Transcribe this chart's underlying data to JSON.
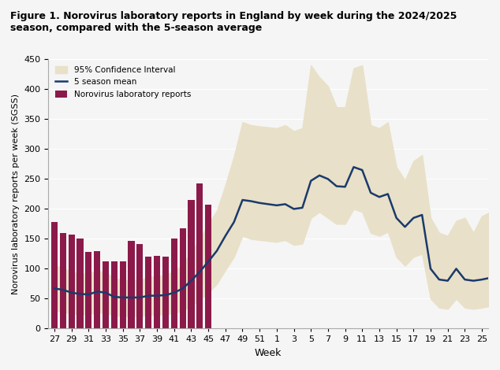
{
  "title": "Figure 1. Norovirus laboratory reports in England by week during the 2024/2025\nseason, compared with the 5-season average",
  "xlabel": "Week",
  "ylabel": "Norovirus laboratory reports per week (SGSS)",
  "ylim": [
    0,
    450
  ],
  "yticks": [
    0,
    50,
    100,
    150,
    200,
    250,
    300,
    350,
    400,
    450
  ],
  "bar_weeks": [
    27,
    28,
    29,
    30,
    31,
    32,
    33,
    34,
    35,
    36,
    37,
    38,
    39,
    40,
    41,
    42,
    43,
    44,
    45
  ],
  "bar_values": [
    178,
    160,
    157,
    150,
    128,
    130,
    112,
    112,
    112,
    147,
    141,
    120,
    121,
    120,
    150,
    167,
    215,
    243,
    207
  ],
  "bar_color": "#8B1A4A",
  "line_weeks": [
    27,
    28,
    29,
    30,
    31,
    32,
    33,
    34,
    35,
    36,
    37,
    38,
    39,
    40,
    41,
    42,
    43,
    44,
    45,
    46,
    47,
    48,
    49,
    50,
    51,
    1,
    2,
    3,
    4,
    5,
    6,
    7,
    8,
    9,
    10,
    11,
    12,
    13,
    14,
    15,
    16,
    17,
    18,
    19,
    20,
    21,
    22,
    23,
    24,
    25,
    26
  ],
  "line_mean": [
    67,
    65,
    60,
    58,
    57,
    62,
    60,
    53,
    52,
    52,
    52,
    55,
    55,
    56,
    60,
    67,
    80,
    95,
    112,
    130,
    155,
    178,
    215,
    213,
    210,
    206,
    208,
    200,
    202,
    247,
    256,
    250,
    238,
    237,
    270,
    265,
    227,
    220,
    225,
    185,
    170,
    185,
    190,
    100,
    82,
    80,
    100,
    82,
    80,
    82,
    85
  ],
  "ci_lower": [
    30,
    28,
    25,
    24,
    24,
    27,
    26,
    22,
    21,
    21,
    21,
    23,
    23,
    24,
    26,
    30,
    38,
    48,
    60,
    75,
    98,
    120,
    155,
    150,
    148,
    145,
    148,
    140,
    142,
    185,
    195,
    185,
    175,
    175,
    200,
    195,
    160,
    155,
    162,
    120,
    105,
    120,
    125,
    50,
    35,
    33,
    50,
    35,
    33,
    35,
    38
  ],
  "ci_upper": [
    105,
    102,
    95,
    92,
    92,
    97,
    94,
    84,
    81,
    81,
    81,
    87,
    87,
    90,
    96,
    107,
    128,
    150,
    175,
    197,
    240,
    288,
    345,
    340,
    338,
    335,
    340,
    330,
    335,
    440,
    420,
    405,
    370,
    370,
    435,
    440,
    340,
    335,
    345,
    270,
    248,
    280,
    290,
    185,
    160,
    155,
    180,
    185,
    160,
    188,
    195
  ],
  "line_color": "#1a3a6b",
  "ci_color": "#e8e0c8",
  "xtick_labels": [
    "27",
    "29",
    "31",
    "33",
    "35",
    "37",
    "39",
    "41",
    "43",
    "45",
    "47",
    "49",
    "51",
    "1",
    "3",
    "5",
    "7",
    "9",
    "11",
    "13",
    "15",
    "17",
    "19",
    "21",
    "23",
    "25"
  ],
  "background_color": "#f5f5f5",
  "legend_ci_label": "95% Confidence Interval",
  "legend_bar_label": "Norovirus laboratory reports",
  "legend_line_label": "5 season mean"
}
